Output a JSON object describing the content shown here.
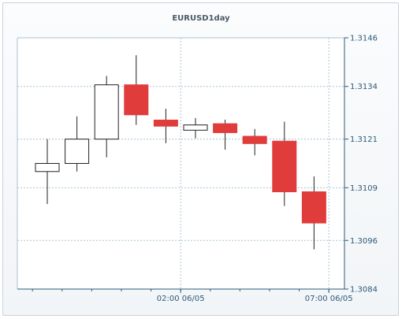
{
  "chart_data": {
    "type": "candlestick",
    "title": "EURUSD1day",
    "xlabel": "",
    "ylabel": "",
    "ylim": [
      1.3084,
      1.3146
    ],
    "y_ticks": [
      "1.3146",
      "1.3134",
      "1.3121",
      "1.3109",
      "1.3096",
      "1.3084"
    ],
    "x_ticks": [
      {
        "label": "02:00 06/05",
        "index": 4.5
      },
      {
        "label": "07:00 06/05",
        "index": 9.5
      }
    ],
    "grid": true,
    "colors": {
      "up_fill": "#ffffff",
      "down_fill": "#e03c3c",
      "wick": "#222222",
      "grid": "#a9c3d6",
      "axis": "#2d5a7a"
    },
    "candles": [
      {
        "open": 1.3113,
        "high": 1.3121,
        "low": 1.3105,
        "close": 1.3115
      },
      {
        "open": 1.3115,
        "high": 1.31266,
        "low": 1.3113,
        "close": 1.3121
      },
      {
        "open": 1.3121,
        "high": 1.31366,
        "low": 1.31165,
        "close": 1.31344
      },
      {
        "open": 1.31344,
        "high": 1.31417,
        "low": 1.31245,
        "close": 1.3127
      },
      {
        "open": 1.31257,
        "high": 1.31285,
        "low": 1.312,
        "close": 1.31242
      },
      {
        "open": 1.31232,
        "high": 1.31262,
        "low": 1.31212,
        "close": 1.31245
      },
      {
        "open": 1.31248,
        "high": 1.31258,
        "low": 1.31184,
        "close": 1.31226
      },
      {
        "open": 1.31217,
        "high": 1.31235,
        "low": 1.3117,
        "close": 1.31199
      },
      {
        "open": 1.31205,
        "high": 1.31253,
        "low": 1.31045,
        "close": 1.3108
      },
      {
        "open": 1.3108,
        "high": 1.31118,
        "low": 1.30938,
        "close": 1.31003
      }
    ]
  }
}
